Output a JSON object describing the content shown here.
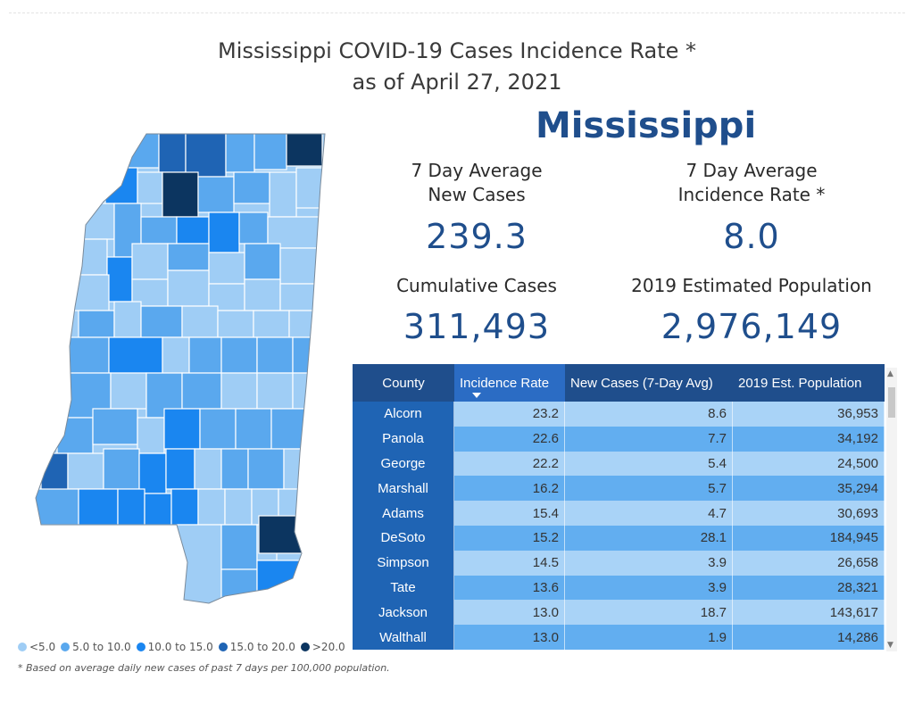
{
  "title_line1": "Mississippi COVID-19 Cases Incidence Rate *",
  "title_line2": "as of April 27, 2021",
  "state_name": "Mississippi",
  "kpis": {
    "avg_new_cases_label1": "7 Day Average",
    "avg_new_cases_label2": "New Cases",
    "avg_new_cases_value": "239.3",
    "avg_incidence_label1": "7 Day Average",
    "avg_incidence_label2": "Incidence Rate *",
    "avg_incidence_value": "8.0",
    "cumulative_label": "Cumulative Cases",
    "cumulative_value": "311,493",
    "population_label": "2019 Estimated Population",
    "population_value": "2,976,149"
  },
  "legend": [
    {
      "label": "<5.0",
      "color": "#9fcdf5"
    },
    {
      "label": "5.0 to 10.0",
      "color": "#5aa8ee"
    },
    {
      "label": "10.0 to 15.0",
      "color": "#1a86f0"
    },
    {
      "label": "15.0 to 20.0",
      "color": "#1f64b4"
    },
    {
      "label": ">20.0",
      "color": "#0c3560"
    }
  ],
  "footnote": "* Based on average daily new cases of past 7 days per 100,000 population.",
  "table": {
    "columns": [
      "County",
      "Incidence Rate",
      "New Cases (7-Day Avg)",
      "2019 Est. Population"
    ],
    "rows": [
      [
        "Alcorn",
        "23.2",
        "8.6",
        "36,953"
      ],
      [
        "Panola",
        "22.6",
        "7.7",
        "34,192"
      ],
      [
        "George",
        "22.2",
        "5.4",
        "24,500"
      ],
      [
        "Marshall",
        "16.2",
        "5.7",
        "35,294"
      ],
      [
        "Adams",
        "15.4",
        "4.7",
        "30,693"
      ],
      [
        "DeSoto",
        "15.2",
        "28.1",
        "184,945"
      ],
      [
        "Simpson",
        "14.5",
        "3.9",
        "26,658"
      ],
      [
        "Tate",
        "13.6",
        "3.9",
        "28,321"
      ],
      [
        "Jackson",
        "13.0",
        "18.7",
        "143,617"
      ],
      [
        "Walthall",
        "13.0",
        "1.9",
        "14,286"
      ]
    ]
  },
  "colors": {
    "header": "#1f4e8c",
    "county_cell": "#1f64b4",
    "row_light": "#a9d3f7",
    "row_mid": "#62aef0"
  }
}
